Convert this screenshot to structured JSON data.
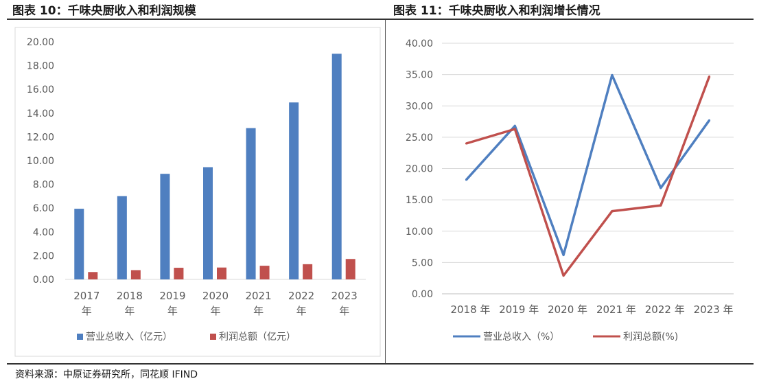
{
  "figures": {
    "left_title": "图表 10：千味央厨收入和利润规模",
    "right_title": "图表 11：千味央厨收入和利润增长情况"
  },
  "source": "资料来源：中原证券研究所，同花顺 IFIND",
  "colors": {
    "blue": "#4f7fc0",
    "red": "#c0504d",
    "axis_text": "#595959",
    "grid": "#d9d9d9"
  },
  "chart_data": [
    {
      "type": "bar",
      "title": "图表 10：千味央厨收入和利润规模",
      "categories": [
        "2017 年",
        "2018 年",
        "2019 年",
        "2020 年",
        "2021 年",
        "2022 年",
        "2023 年"
      ],
      "series": [
        {
          "name": "营业总收入（亿元）",
          "color": "#4f7fc0",
          "values": [
            5.95,
            7.01,
            8.89,
            9.45,
            12.74,
            14.9,
            19.0
          ]
        },
        {
          "name": "利润总额（亿元）",
          "color": "#c0504d",
          "values": [
            0.62,
            0.78,
            0.98,
            1.0,
            1.15,
            1.28,
            1.72
          ]
        }
      ],
      "ylim": [
        0,
        20
      ],
      "yticks": [
        "0.00",
        "2.00",
        "4.00",
        "6.00",
        "8.00",
        "10.00",
        "12.00",
        "14.00",
        "16.00",
        "18.00",
        "20.00"
      ],
      "grid": false,
      "legend": "bottom"
    },
    {
      "type": "line",
      "title": "图表 11：千味央厨收入和利润增长情况",
      "categories": [
        "2018 年",
        "2019 年",
        "2020 年",
        "2021 年",
        "2022 年",
        "2023 年"
      ],
      "series": [
        {
          "name": "营业总收入（%）",
          "color": "#4f7fc0",
          "values": [
            18.2,
            26.8,
            6.2,
            34.9,
            16.9,
            27.7
          ]
        },
        {
          "name": "利润总额(%)",
          "color": "#c0504d",
          "values": [
            24.0,
            26.3,
            2.9,
            13.2,
            14.1,
            34.7
          ]
        }
      ],
      "ylim": [
        0,
        40
      ],
      "yticks": [
        "0.00",
        "5.00",
        "10.00",
        "15.00",
        "20.00",
        "25.00",
        "30.00",
        "35.00",
        "40.00"
      ],
      "grid": true,
      "legend": "bottom"
    }
  ]
}
